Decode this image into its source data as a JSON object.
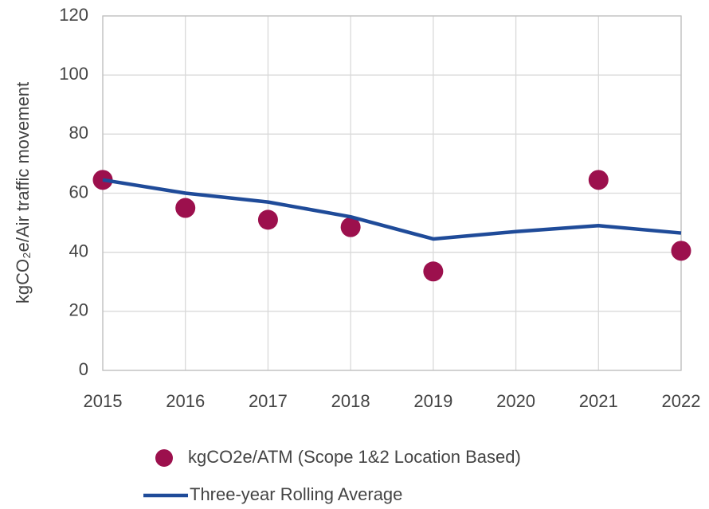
{
  "chart_data": {
    "type": "line",
    "y_label": "kgCO₂e/Air traffic movement",
    "x": [
      2015,
      2016,
      2017,
      2018,
      2019,
      2020,
      2021,
      2022
    ],
    "xlim": [
      2015,
      2022
    ],
    "xticks": [
      2015,
      2016,
      2017,
      2018,
      2019,
      2020,
      2021,
      2022
    ],
    "ylim": [
      0,
      120
    ],
    "yticks": [
      0,
      20,
      40,
      60,
      80,
      100,
      120
    ],
    "grid": true,
    "legend": "bottom",
    "series": [
      {
        "name": "kgCO2e/ATM (Scope 1&2 Location Based)",
        "type": "scatter",
        "color": "#9c104d",
        "values": [
          64.5,
          55,
          51,
          48.5,
          33.5,
          null,
          64.5,
          40.5
        ]
      },
      {
        "name": "Three-year Rolling Average",
        "type": "line",
        "color": "#1f4b99",
        "values": [
          64.5,
          60,
          57,
          52,
          44.5,
          47,
          49,
          46.5
        ]
      }
    ]
  }
}
